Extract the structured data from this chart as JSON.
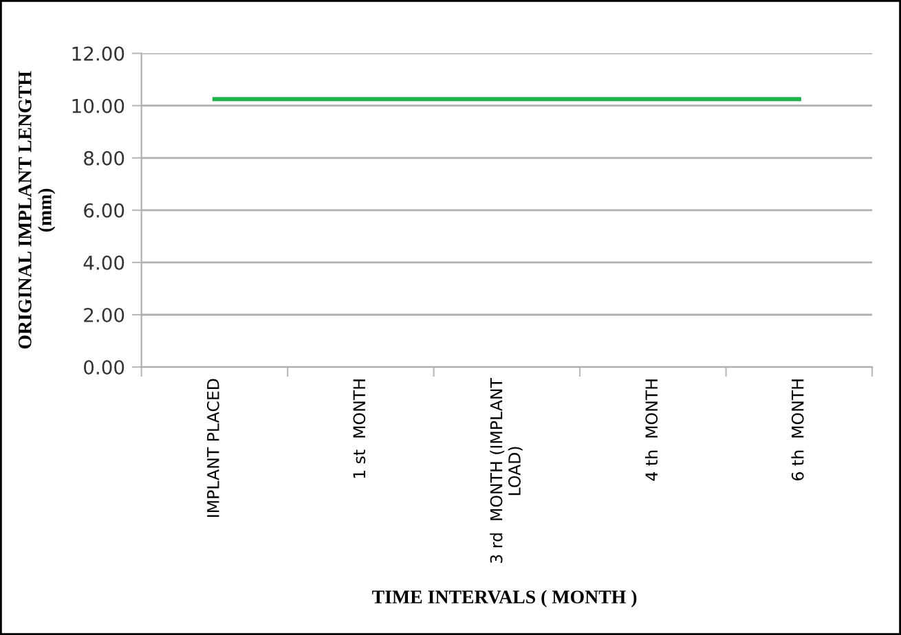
{
  "chart_data": {
    "type": "line",
    "xlabel": "TIME INTERVALS ( MONTH )",
    "ylabel": "ORIGINAL IMPLANT LENGTH\n(mm)",
    "categories": [
      "IMPLANT PLACED",
      "1 st  MONTH",
      "3 rd  MONTH (IMPLANT\nLOAD)",
      "4 th  MONTH",
      "6 th  MONTH"
    ],
    "series": [
      {
        "color": "#1fb14a",
        "values": [
          10.25,
          10.25,
          10.25,
          10.25,
          10.25
        ]
      }
    ],
    "ylim": [
      0,
      12
    ],
    "yticks": [
      {
        "value": 0,
        "label": "0.00"
      },
      {
        "value": 2,
        "label": "2.00"
      },
      {
        "value": 4,
        "label": "4.00"
      },
      {
        "value": 6,
        "label": "6.00"
      },
      {
        "value": 8,
        "label": "8.00"
      },
      {
        "value": 10,
        "label": "10.00"
      },
      {
        "value": 12,
        "label": "12.00"
      }
    ],
    "grid": "y",
    "legend": false,
    "marker": "none",
    "line_style": "solid"
  }
}
